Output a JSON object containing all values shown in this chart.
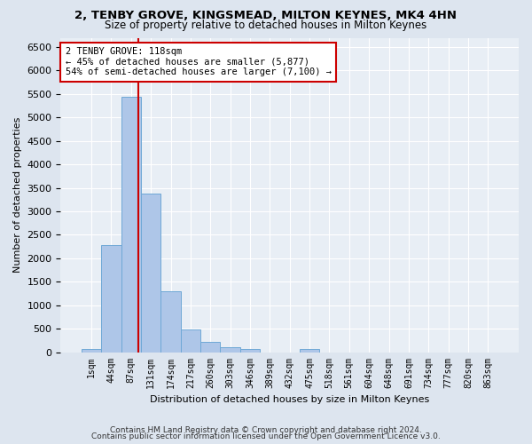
{
  "title1": "2, TENBY GROVE, KINGSMEAD, MILTON KEYNES, MK4 4HN",
  "title2": "Size of property relative to detached houses in Milton Keynes",
  "xlabel": "Distribution of detached houses by size in Milton Keynes",
  "ylabel": "Number of detached properties",
  "bins": [
    "1sqm",
    "44sqm",
    "87sqm",
    "131sqm",
    "174sqm",
    "217sqm",
    "260sqm",
    "303sqm",
    "346sqm",
    "389sqm",
    "432sqm",
    "475sqm",
    "518sqm",
    "561sqm",
    "604sqm",
    "648sqm",
    "691sqm",
    "734sqm",
    "777sqm",
    "820sqm",
    "863sqm"
  ],
  "values": [
    75,
    2280,
    5450,
    3380,
    1300,
    480,
    210,
    100,
    65,
    0,
    0,
    65,
    0,
    0,
    0,
    0,
    0,
    0,
    0,
    0,
    0
  ],
  "bar_color": "#aec6e8",
  "bar_edge_color": "#6fa8d6",
  "vline_color": "#cc0000",
  "annotation_text": "2 TENBY GROVE: 118sqm\n← 45% of detached houses are smaller (5,877)\n54% of semi-detached houses are larger (7,100) →",
  "annotation_box_color": "#ffffff",
  "annotation_box_edge": "#cc0000",
  "ylim": [
    0,
    6700
  ],
  "yticks": [
    0,
    500,
    1000,
    1500,
    2000,
    2500,
    3000,
    3500,
    4000,
    4500,
    5000,
    5500,
    6000,
    6500
  ],
  "footer_line1": "Contains HM Land Registry data © Crown copyright and database right 2024.",
  "footer_line2": "Contains public sector information licensed under the Open Government Licence v3.0.",
  "bg_color": "#dde5ef",
  "plot_bg_color": "#e8eef5"
}
